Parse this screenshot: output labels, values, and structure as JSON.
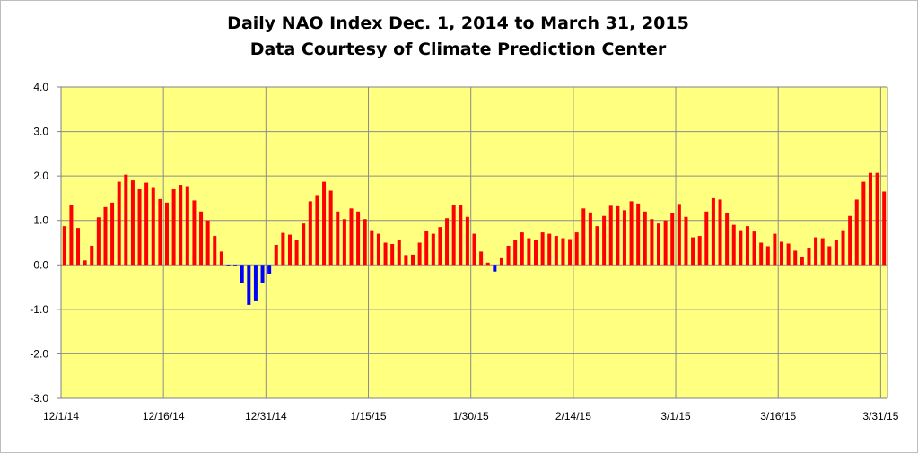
{
  "chart_data": {
    "type": "bar",
    "title_line1": "Daily NAO Index Dec. 1, 2014 to March 31, 2015",
    "title_line2": "Data Courtesy of Climate Prediction Center",
    "xlabel": "",
    "ylabel": "",
    "ylim": [
      -3.0,
      4.0
    ],
    "y_ticks": [
      "4.0",
      "3.0",
      "2.0",
      "1.0",
      "0.0",
      "-1.0",
      "-2.0",
      "-3.0"
    ],
    "x_tick_labels": [
      "12/1/14",
      "12/16/14",
      "12/31/14",
      "1/15/15",
      "1/30/15",
      "2/14/15",
      "3/1/15",
      "3/16/15",
      "3/31/15"
    ],
    "grid": true,
    "plot_background": "#ffff80",
    "positive_color": "#ff0000",
    "negative_color": "#0000ff",
    "series": [
      {
        "values": [
          0.87,
          1.35,
          0.83,
          0.1,
          0.43,
          1.07,
          1.3,
          1.4,
          1.87,
          2.03,
          1.9,
          1.7,
          1.85,
          1.73,
          1.48,
          1.4,
          1.7,
          1.8,
          1.77,
          1.45,
          1.2,
          1.0,
          0.65,
          0.3,
          -0.02,
          -0.03,
          -0.4,
          -0.9,
          -0.8,
          -0.4,
          -0.2,
          0.45,
          0.72,
          0.68,
          0.57,
          0.93,
          1.43,
          1.57,
          1.87,
          1.67,
          1.2,
          1.03,
          1.27,
          1.2,
          1.03,
          0.78,
          0.7,
          0.5,
          0.47,
          0.57,
          0.22,
          0.23,
          0.5,
          0.77,
          0.7,
          0.85,
          1.05,
          1.35,
          1.35,
          1.08,
          0.7,
          0.3,
          0.05,
          -0.15,
          0.15,
          0.43,
          0.55,
          0.73,
          0.6,
          0.57,
          0.73,
          0.7,
          0.65,
          0.6,
          0.58,
          0.73,
          1.27,
          1.18,
          0.87,
          1.1,
          1.33,
          1.32,
          1.23,
          1.43,
          1.38,
          1.2,
          1.03,
          0.93,
          1.0,
          1.17,
          1.37,
          1.08,
          0.62,
          0.65,
          1.2,
          1.5,
          1.47,
          1.17,
          0.9,
          0.78,
          0.87,
          0.75,
          0.5,
          0.42,
          0.7,
          0.52,
          0.48,
          0.32,
          0.18,
          0.38,
          0.62,
          0.6,
          0.42,
          0.55,
          0.78,
          1.1,
          1.47,
          1.87,
          2.07,
          2.07,
          1.65
        ]
      }
    ]
  }
}
